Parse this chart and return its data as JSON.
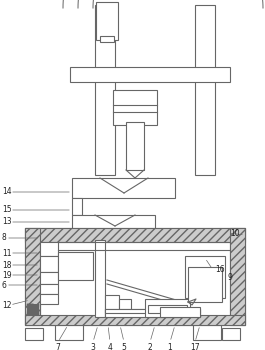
{
  "fig_width": 2.65,
  "fig_height": 3.5,
  "dpi": 100,
  "lc": "#666666",
  "lw": 0.8,
  "hatch_fc": "#cccccc",
  "white": "#ffffff",
  "bg": "#f5f5f5"
}
